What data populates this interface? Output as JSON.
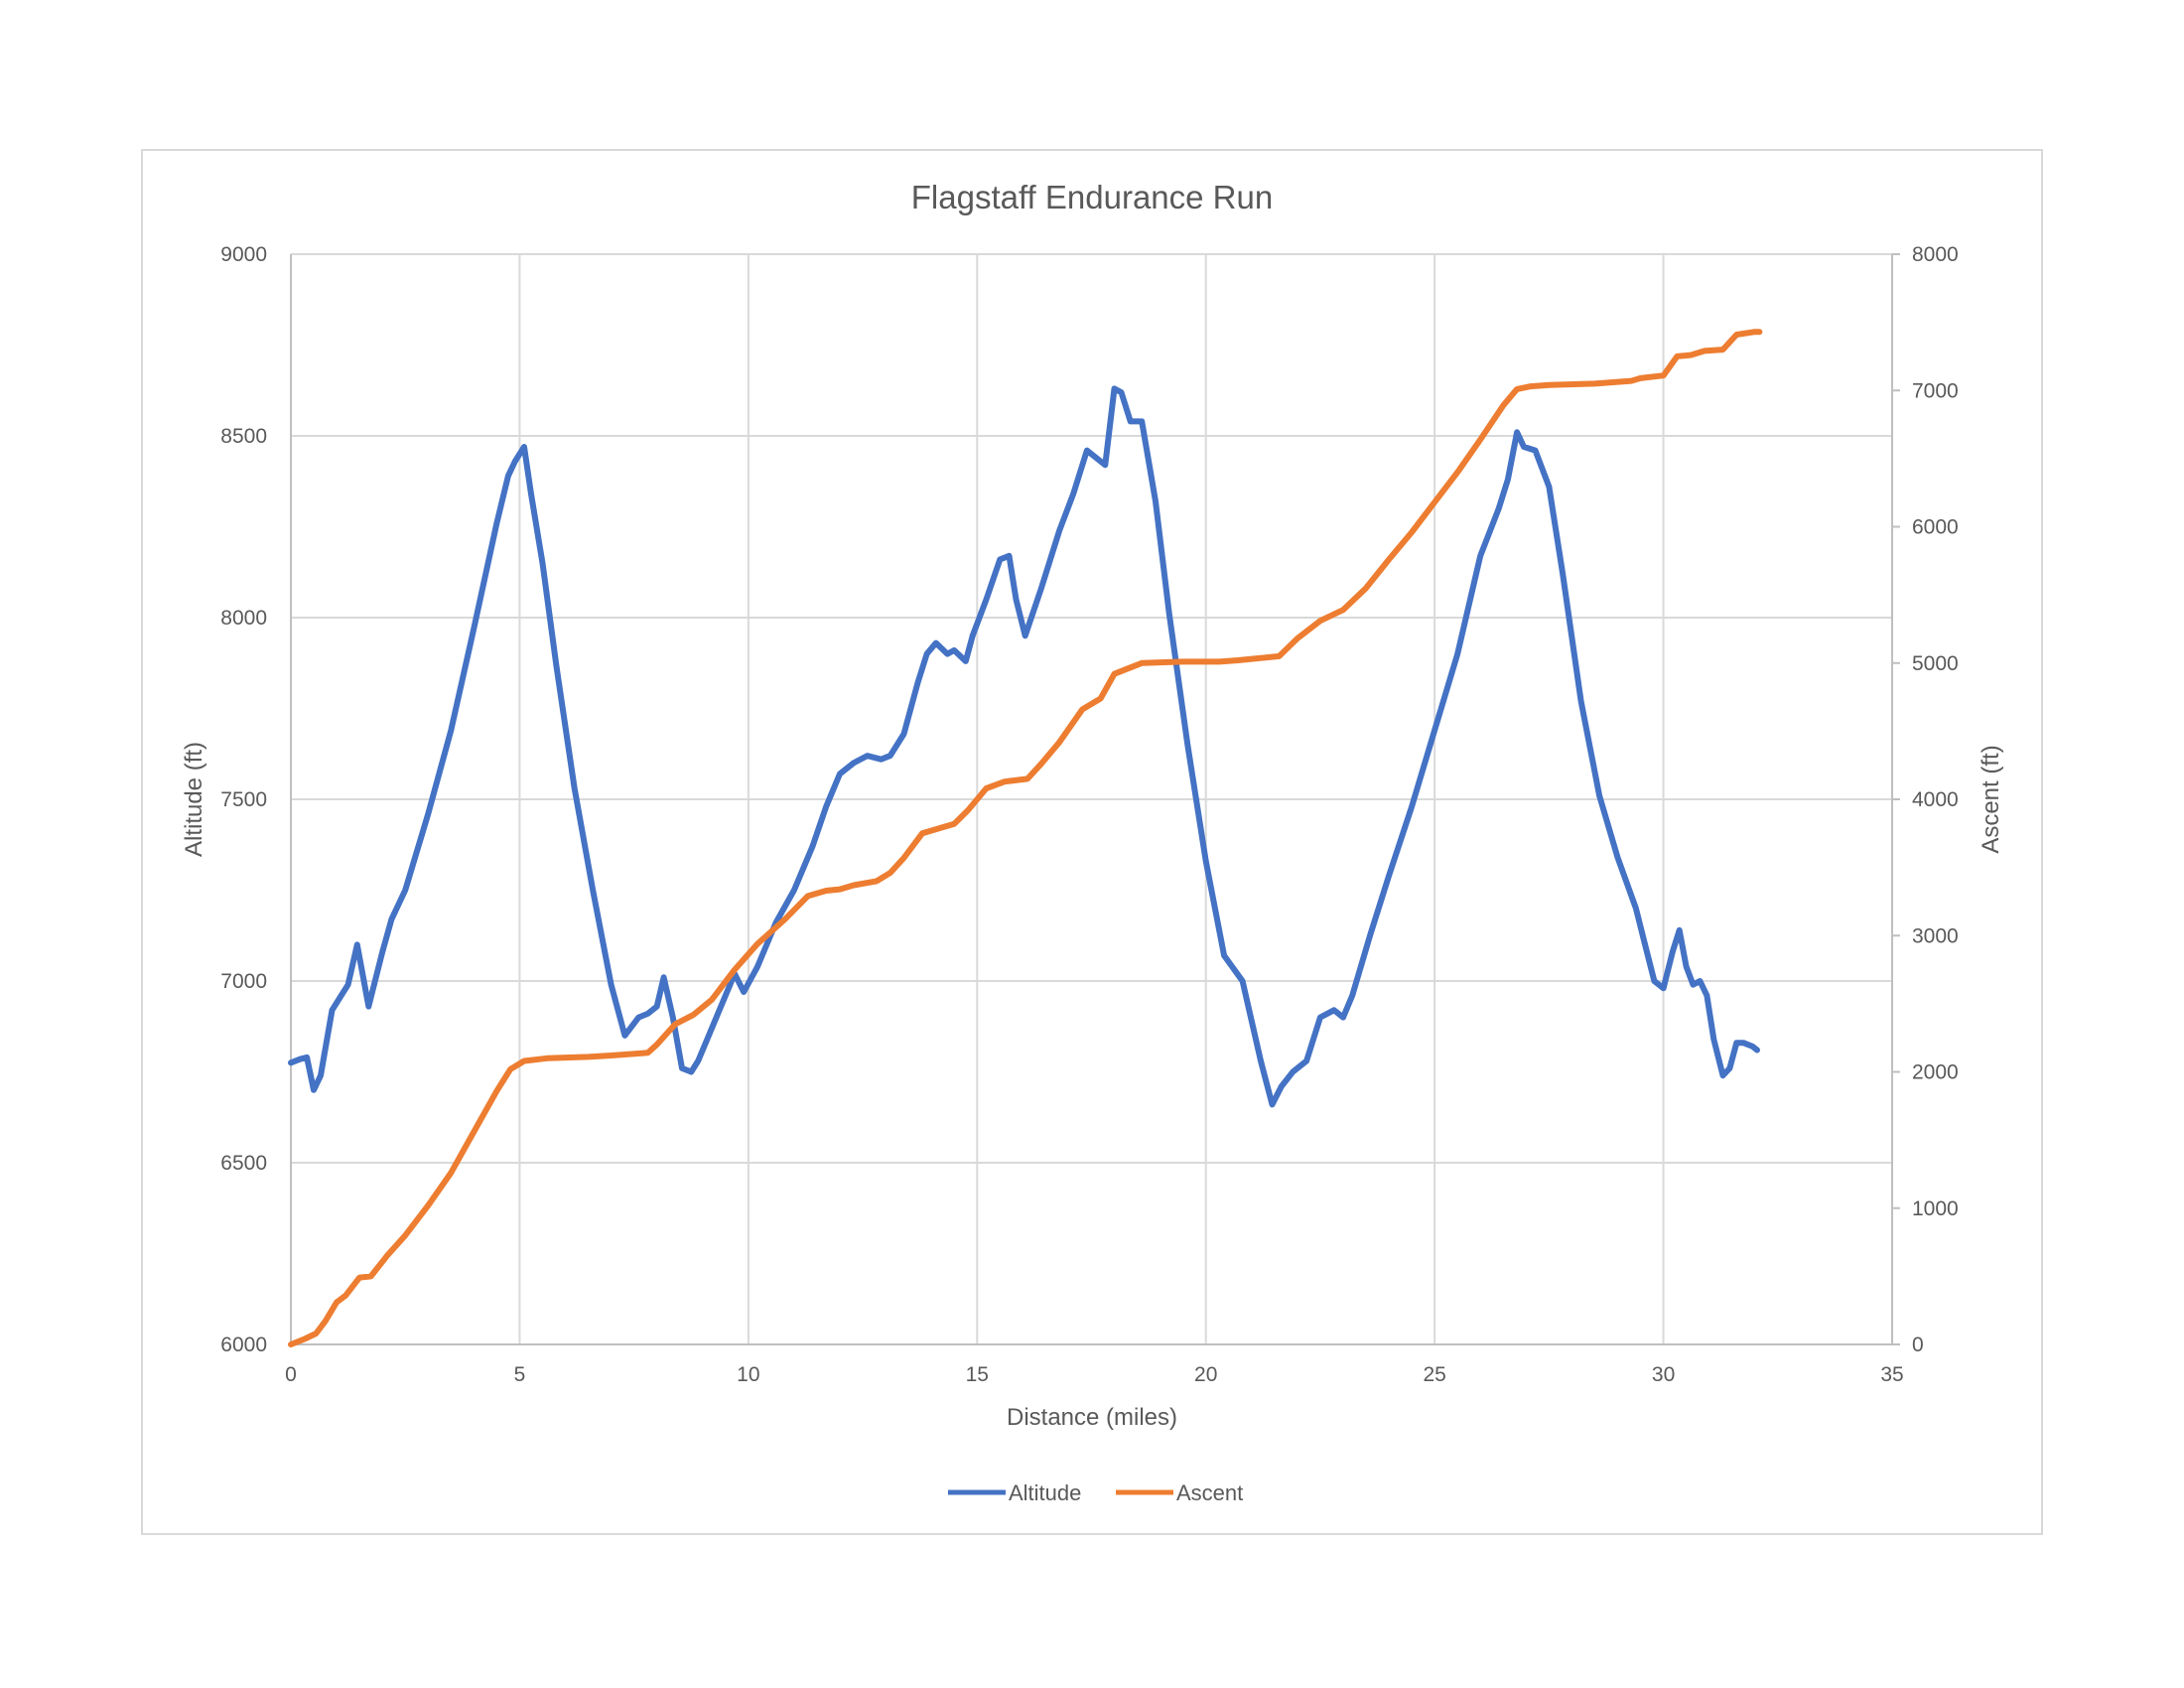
{
  "chart_data": {
    "type": "line",
    "title": "Flagstaff Endurance Run",
    "xlabel": "Distance (miles)",
    "ylabel": "Altitude (ft)",
    "y2label": "Ascent (ft)",
    "xlim": [
      0,
      35
    ],
    "ylim": [
      6000,
      9000
    ],
    "y2lim": [
      0,
      8000
    ],
    "x_ticks": [
      0,
      5,
      10,
      15,
      20,
      25,
      30,
      35
    ],
    "y_ticks": [
      6000,
      6500,
      7000,
      7500,
      8000,
      8500,
      9000
    ],
    "y2_ticks": [
      0,
      1000,
      2000,
      3000,
      4000,
      5000,
      6000,
      7000,
      8000
    ],
    "grid": true,
    "legend_position": "bottom",
    "series": [
      {
        "name": "Altitude",
        "axis": "left",
        "color": "#4472c4",
        "x": [
          0,
          0.2,
          0.35,
          0.5,
          0.65,
          0.9,
          1.1,
          1.25,
          1.45,
          1.7,
          2.0,
          2.2,
          2.5,
          3.0,
          3.5,
          4.0,
          4.5,
          4.75,
          4.9,
          5.1,
          5.25,
          5.5,
          5.8,
          6.2,
          6.6,
          7.0,
          7.3,
          7.6,
          7.8,
          8.0,
          8.15,
          8.35,
          8.55,
          8.75,
          8.9,
          9.1,
          9.4,
          9.7,
          9.9,
          10.2,
          10.6,
          11.0,
          11.4,
          11.7,
          12.0,
          12.3,
          12.6,
          12.9,
          13.1,
          13.4,
          13.7,
          13.9,
          14.1,
          14.35,
          14.5,
          14.75,
          14.9,
          15.2,
          15.5,
          15.7,
          15.85,
          16.05,
          16.4,
          16.8,
          17.1,
          17.4,
          17.8,
          18.0,
          18.15,
          18.35,
          18.6,
          18.9,
          19.2,
          19.6,
          20.0,
          20.4,
          20.8,
          21.2,
          21.45,
          21.65,
          21.9,
          22.2,
          22.5,
          22.8,
          23.0,
          23.2,
          23.6,
          24.0,
          24.5,
          25.0,
          25.5,
          26.0,
          26.4,
          26.6,
          26.8,
          26.95,
          27.2,
          27.5,
          27.8,
          28.2,
          28.6,
          29.0,
          29.4,
          29.6,
          29.8,
          30.0,
          30.2,
          30.35,
          30.5,
          30.65,
          30.8,
          30.95,
          31.1,
          31.3,
          31.45,
          31.6,
          31.75,
          31.95,
          32.05
        ],
        "values": [
          6775,
          6785,
          6790,
          6700,
          6740,
          6920,
          6960,
          6990,
          7100,
          6930,
          7080,
          7170,
          7250,
          7460,
          7690,
          7970,
          8260,
          8390,
          8430,
          8470,
          8340,
          8150,
          7870,
          7530,
          7250,
          6990,
          6850,
          6900,
          6910,
          6930,
          7010,
          6900,
          6760,
          6750,
          6780,
          6840,
          6930,
          7020,
          6970,
          7040,
          7160,
          7250,
          7370,
          7480,
          7570,
          7600,
          7620,
          7610,
          7620,
          7680,
          7820,
          7900,
          7930,
          7900,
          7910,
          7880,
          7950,
          8050,
          8160,
          8170,
          8050,
          7950,
          8080,
          8240,
          8340,
          8460,
          8420,
          8630,
          8620,
          8540,
          8540,
          8320,
          8010,
          7650,
          7330,
          7070,
          7000,
          6780,
          6660,
          6710,
          6750,
          6780,
          6900,
          6920,
          6900,
          6960,
          7130,
          7290,
          7480,
          7690,
          7900,
          8170,
          8300,
          8380,
          8510,
          8470,
          8460,
          8360,
          8120,
          7770,
          7510,
          7340,
          7200,
          7100,
          7000,
          6980,
          7080,
          7140,
          7040,
          6990,
          7000,
          6960,
          6840,
          6740,
          6760,
          6830,
          6830,
          6820,
          6810
        ]
      },
      {
        "name": "Ascent",
        "axis": "right",
        "color": "#ed7d31",
        "x": [
          0,
          0.3,
          0.55,
          0.75,
          1.0,
          1.2,
          1.5,
          1.75,
          2.1,
          2.5,
          3.0,
          3.5,
          4.0,
          4.5,
          4.8,
          5.1,
          5.6,
          6.5,
          7.0,
          7.8,
          8.0,
          8.4,
          8.8,
          9.2,
          9.7,
          10.2,
          10.8,
          11.3,
          11.7,
          12.0,
          12.3,
          12.8,
          13.1,
          13.4,
          13.8,
          14.5,
          14.8,
          15.2,
          15.6,
          16.1,
          16.4,
          16.8,
          17.3,
          17.7,
          18.0,
          18.3,
          18.6,
          19.5,
          20.3,
          20.7,
          21.6,
          22.0,
          22.5,
          23.0,
          23.5,
          24.0,
          24.5,
          25.0,
          25.5,
          26.0,
          26.5,
          26.8,
          27.1,
          27.5,
          28.5,
          29.3,
          29.5,
          30.0,
          30.3,
          30.6,
          30.9,
          31.3,
          31.6,
          32.0,
          32.1
        ],
        "values": [
          0,
          40,
          80,
          170,
          310,
          360,
          490,
          500,
          650,
          800,
          1020,
          1260,
          1560,
          1860,
          2020,
          2080,
          2100,
          2110,
          2120,
          2140,
          2200,
          2350,
          2420,
          2530,
          2750,
          2940,
          3120,
          3290,
          3330,
          3340,
          3370,
          3400,
          3460,
          3570,
          3750,
          3820,
          3920,
          4080,
          4130,
          4150,
          4260,
          4420,
          4660,
          4740,
          4920,
          4960,
          5000,
          5010,
          5010,
          5020,
          5050,
          5180,
          5310,
          5390,
          5550,
          5760,
          5960,
          6180,
          6400,
          6640,
          6890,
          7010,
          7030,
          7040,
          7050,
          7070,
          7090,
          7110,
          7250,
          7260,
          7290,
          7300,
          7410,
          7430,
          7430
        ]
      }
    ]
  }
}
